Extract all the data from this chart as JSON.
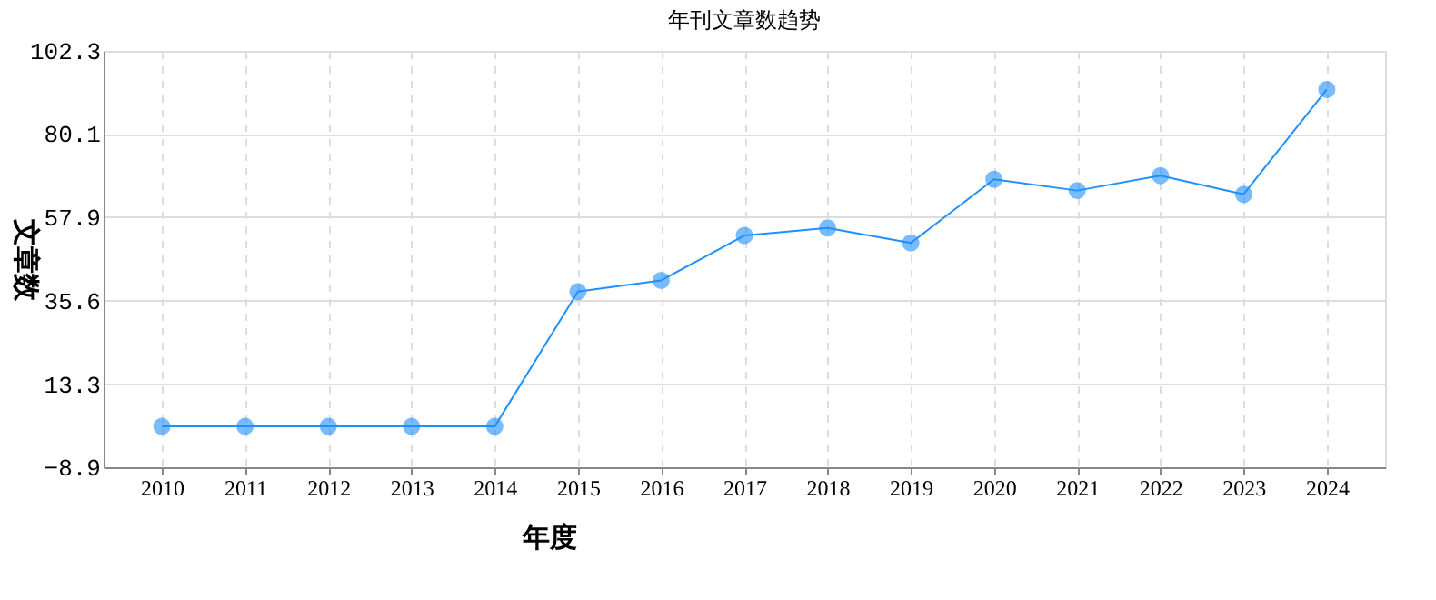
{
  "chart_data": {
    "type": "line",
    "title": "年刊文章数趋势",
    "xlabel": "年度",
    "ylabel": "文章数",
    "categories": [
      "2010",
      "2011",
      "2012",
      "2013",
      "2014",
      "2015",
      "2016",
      "2017",
      "2018",
      "2019",
      "2020",
      "2021",
      "2022",
      "2023",
      "2024"
    ],
    "series": [
      {
        "color": "#1e90ff",
        "values": [
          2,
          2,
          2,
          2,
          2,
          38,
          41,
          53,
          55,
          51,
          68,
          65,
          69,
          64,
          92
        ]
      }
    ],
    "ylim": [
      -8.9,
      102.3
    ],
    "yticks": [
      -8.9,
      13.3,
      35.6,
      57.9,
      80.1,
      102.3
    ],
    "grid": true,
    "marker": "circle",
    "line_style": "solid"
  }
}
